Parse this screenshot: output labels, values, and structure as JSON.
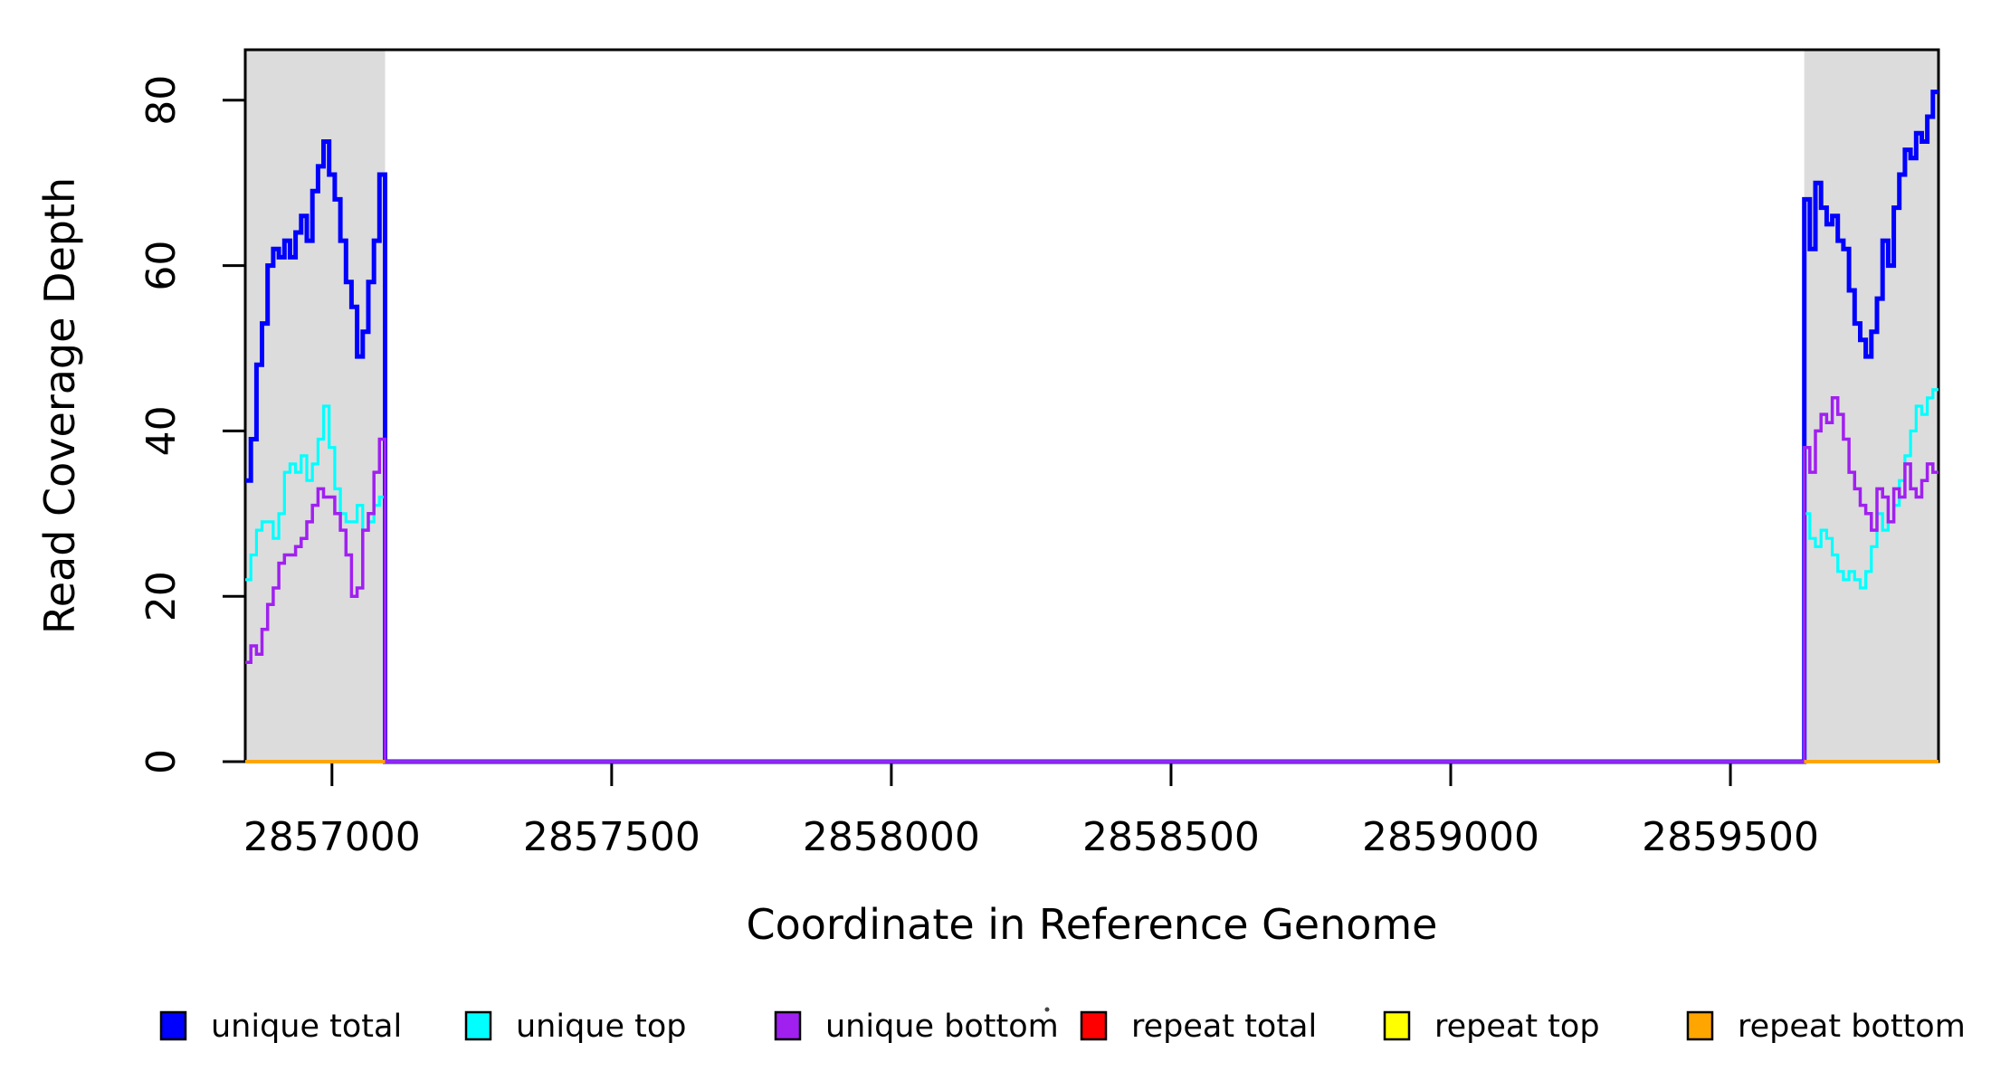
{
  "figure": {
    "background": "#FFFFFF",
    "axis_color": "#000000"
  },
  "chart_data": {
    "type": "line",
    "style": "step",
    "title": "",
    "xlabel": "Coordinate in Reference Genome",
    "ylabel": "Read Coverage Depth",
    "xlim": [
      2856845,
      2859872
    ],
    "ylim": [
      0,
      86.1
    ],
    "x_ticks": [
      2857000,
      2857500,
      2858000,
      2858500,
      2859000,
      2859500
    ],
    "x_tick_labels": [
      "2857000",
      "2857500",
      "2858000",
      "2858500",
      "2859000",
      "2859500"
    ],
    "y_ticks": [
      0,
      20,
      40,
      60,
      80
    ],
    "y_tick_labels": [
      "0",
      "20",
      "40",
      "60",
      "80"
    ],
    "grid": false,
    "legend_position": "bottom",
    "bin_size": 10,
    "shaded_regions": [
      {
        "x0": 2856845,
        "x1": 2857095,
        "color": "#DCDCDC"
      },
      {
        "x0": 2859632,
        "x1": 2859872,
        "color": "#DCDCDC"
      }
    ],
    "series": [
      {
        "name": "unique total",
        "color": "#0000FF",
        "width": 5,
        "kind": "unique",
        "left": {
          "start": 2856845,
          "values": [
            34,
            39,
            48,
            53,
            60,
            62,
            61,
            63,
            61,
            64,
            66,
            63,
            69,
            72,
            75,
            71,
            68,
            63,
            58,
            55,
            49,
            52,
            58,
            63,
            71
          ]
        },
        "right": {
          "start": 2859632,
          "values": [
            68,
            62,
            70,
            67,
            65,
            66,
            63,
            62,
            57,
            53,
            51,
            49,
            52,
            56,
            63,
            60,
            67,
            71,
            74,
            73,
            76,
            75,
            78,
            81
          ]
        }
      },
      {
        "name": "unique top",
        "color": "#00FFFF",
        "width": 3.2,
        "kind": "unique",
        "left": {
          "start": 2856845,
          "values": [
            22,
            25,
            28,
            29,
            29,
            27,
            30,
            35,
            36,
            35,
            37,
            34,
            36,
            39,
            43,
            38,
            33,
            30,
            29,
            29,
            31,
            28,
            29,
            31,
            32
          ]
        },
        "right": {
          "start": 2859632,
          "values": [
            30,
            27,
            26,
            28,
            27,
            25,
            23,
            22,
            23,
            22,
            21,
            23,
            26,
            30,
            28,
            29,
            31,
            34,
            37,
            40,
            43,
            42,
            44,
            45
          ]
        }
      },
      {
        "name": "unique bottom",
        "color": "#A020F0",
        "width": 3.5,
        "kind": "unique",
        "left": {
          "start": 2856845,
          "values": [
            12,
            14,
            13,
            16,
            19,
            21,
            24,
            25,
            25,
            26,
            27,
            29,
            31,
            33,
            32,
            32,
            30,
            28,
            25,
            20,
            21,
            28,
            30,
            35,
            39
          ]
        },
        "right": {
          "start": 2859632,
          "values": [
            38,
            35,
            40,
            42,
            41,
            44,
            42,
            39,
            35,
            33,
            31,
            30,
            28,
            33,
            32,
            29,
            33,
            32,
            36,
            33,
            32,
            34,
            36,
            35
          ]
        }
      },
      {
        "name": "repeat total",
        "color": "#FF0000",
        "width": 4,
        "kind": "repeat_zero"
      },
      {
        "name": "repeat top",
        "color": "#FFFF00",
        "width": 4,
        "kind": "repeat_zero"
      },
      {
        "name": "repeat bottom",
        "color": "#FFA500",
        "width": 4,
        "kind": "repeat_zero"
      }
    ],
    "legend": {
      "items": [
        {
          "label": "unique total",
          "color": "#0000FF"
        },
        {
          "label": "unique top",
          "color": "#00FFFF"
        },
        {
          "label": "unique bottom",
          "color": "#A020F0"
        },
        {
          "label": "repeat total",
          "color": "#FF0000"
        },
        {
          "label": "repeat top",
          "color": "#FFFF00"
        },
        {
          "label": "repeat bottom",
          "color": "#FFA500"
        }
      ]
    }
  }
}
